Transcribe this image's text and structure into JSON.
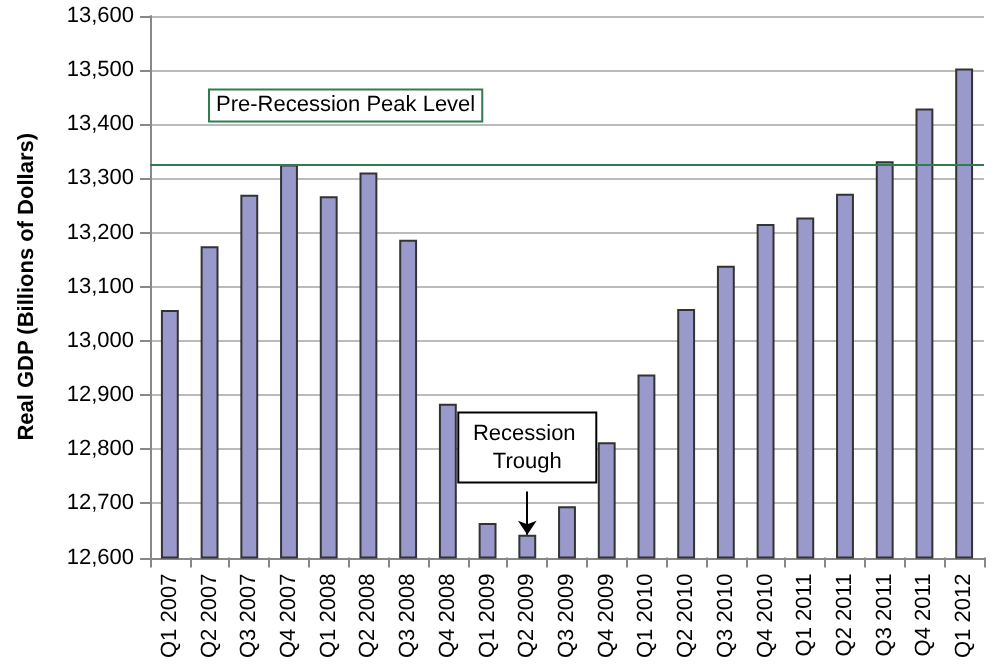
{
  "chart_data": {
    "type": "bar",
    "ylabel": "Real GDP (Billions of Dollars)",
    "categories": [
      "Q1 2007",
      "Q2 2007",
      "Q3 2007",
      "Q4 2007",
      "Q1 2008",
      "Q2 2008",
      "Q3 2008",
      "Q4 2008",
      "Q1 2009",
      "Q2 2009",
      "Q3 2009",
      "Q4 2009",
      "Q1 2010",
      "Q2 2010",
      "Q3 2010",
      "Q4 2010",
      "Q1 2011",
      "Q2 2011",
      "Q3 2011",
      "Q4 2011",
      "Q1 2012"
    ],
    "series": [
      {
        "color": "#9999cc",
        "values": [
          13057,
          13175,
          13270,
          13326,
          13267,
          13311,
          13187,
          12884,
          12664,
          12642,
          12695,
          12813,
          12938,
          13059,
          13139,
          13216,
          13228,
          13272,
          13332,
          13429,
          13503
        ]
      }
    ],
    "ylim": [
      12600,
      13600
    ],
    "yticks": [
      {
        "value": 12600,
        "label": "12,600"
      },
      {
        "value": 12700,
        "label": "12,700"
      },
      {
        "value": 12800,
        "label": "12,800"
      },
      {
        "value": 12900,
        "label": "12,900"
      },
      {
        "value": 13000,
        "label": "13,000"
      },
      {
        "value": 13100,
        "label": "13,100"
      },
      {
        "value": 13200,
        "label": "13,200"
      },
      {
        "value": 13300,
        "label": "13,300"
      },
      {
        "value": 13400,
        "label": "13,400"
      },
      {
        "value": 13500,
        "label": "13,500"
      },
      {
        "value": 13600,
        "label": "13,600"
      }
    ],
    "grid": "y",
    "ref_lines": [
      {
        "axis": "y",
        "value": 13326,
        "label": "Pre-Recession Peak Level",
        "color": "#2e7d4f"
      }
    ],
    "annotations": [
      {
        "text": "Recession Trough",
        "x": "Q2 2009",
        "y": 12642
      }
    ]
  }
}
